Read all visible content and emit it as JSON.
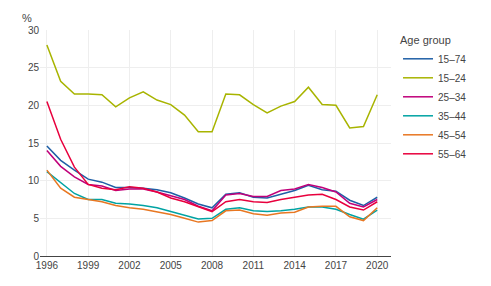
{
  "chart_data": {
    "type": "line",
    "x": [
      1996,
      1997,
      1998,
      1999,
      2000,
      2001,
      2002,
      2003,
      2004,
      2005,
      2006,
      2007,
      2008,
      2009,
      2010,
      2011,
      2012,
      2013,
      2014,
      2015,
      2016,
      2017,
      2018,
      2019,
      2020
    ],
    "series": [
      {
        "name": "15–74",
        "color": "#1f5fa6",
        "values": [
          14.6,
          12.7,
          11.4,
          10.2,
          9.8,
          9.1,
          9.1,
          9.0,
          8.8,
          8.4,
          7.7,
          6.9,
          6.4,
          8.2,
          8.4,
          7.8,
          7.7,
          8.2,
          8.7,
          9.4,
          8.8,
          8.6,
          7.4,
          6.7,
          7.8
        ]
      },
      {
        "name": "15–24",
        "color": "#a8b400",
        "values": [
          28.0,
          23.2,
          21.5,
          21.5,
          21.4,
          19.8,
          21.0,
          21.8,
          20.7,
          20.1,
          18.7,
          16.5,
          16.5,
          21.5,
          21.4,
          20.1,
          19.0,
          19.9,
          20.5,
          22.4,
          20.1,
          20.0,
          17.0,
          17.2,
          21.4
        ]
      },
      {
        "name": "25–34",
        "color": "#c0007a",
        "values": [
          14.0,
          11.9,
          10.5,
          9.5,
          9.3,
          8.7,
          8.9,
          8.9,
          8.5,
          8.0,
          7.5,
          6.6,
          6.0,
          8.1,
          8.3,
          7.9,
          7.9,
          8.7,
          8.9,
          9.5,
          9.1,
          8.5,
          7.0,
          6.5,
          7.5
        ]
      },
      {
        "name": "35–44",
        "color": "#00a3a3",
        "values": [
          11.2,
          9.7,
          8.3,
          7.5,
          7.5,
          7.0,
          6.9,
          6.7,
          6.4,
          5.9,
          5.4,
          4.9,
          5.0,
          6.2,
          6.4,
          6.0,
          5.9,
          6.0,
          6.2,
          6.5,
          6.5,
          6.2,
          5.5,
          4.9,
          6.1
        ]
      },
      {
        "name": "45–54",
        "color": "#e87722",
        "values": [
          11.4,
          9.0,
          7.8,
          7.5,
          7.2,
          6.7,
          6.4,
          6.2,
          5.9,
          5.5,
          5.0,
          4.5,
          4.7,
          6.0,
          6.1,
          5.6,
          5.4,
          5.7,
          5.8,
          6.5,
          6.6,
          6.6,
          5.2,
          4.7,
          6.4
        ]
      },
      {
        "name": "55–64",
        "color": "#e8003d",
        "values": [
          20.5,
          15.5,
          11.8,
          9.5,
          9.0,
          8.8,
          9.2,
          9.0,
          8.5,
          7.7,
          7.2,
          6.5,
          5.9,
          7.2,
          7.5,
          7.2,
          7.1,
          7.5,
          7.8,
          8.1,
          8.2,
          7.5,
          6.5,
          6.1,
          7.2
        ]
      }
    ],
    "ylabel": "%",
    "legend_title": "Age group",
    "legend": "right",
    "xlim": [
      1995.5,
      2021
    ],
    "xticks": [
      1996,
      1999,
      2002,
      2005,
      2008,
      2011,
      2014,
      2017,
      2020
    ],
    "ylim": [
      0,
      30
    ],
    "yticks": [
      0,
      5,
      10,
      15,
      20,
      25,
      30
    ],
    "grid": true
  }
}
